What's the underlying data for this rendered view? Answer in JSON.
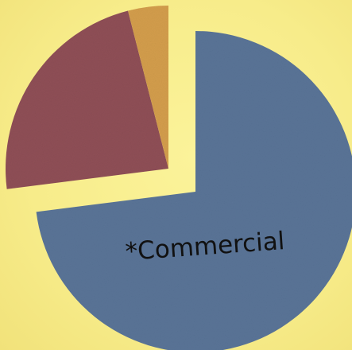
{
  "chart_data": {
    "type": "pie",
    "title": "",
    "slices": [
      {
        "label": "*Commercial",
        "value": 73,
        "color": "#5a7497",
        "exploded": false,
        "label_visible": true
      },
      {
        "label": "",
        "value": 23,
        "color": "#8f4f56",
        "exploded": true,
        "label_visible": false
      },
      {
        "label": "",
        "value": 4,
        "color": "#d39d4c",
        "exploded": true,
        "label_visible": false
      }
    ],
    "start_angle_deg": 0,
    "direction": "clockwise",
    "legend": "none",
    "grid": false
  },
  "colors": {
    "background": "#f7ec8a"
  }
}
